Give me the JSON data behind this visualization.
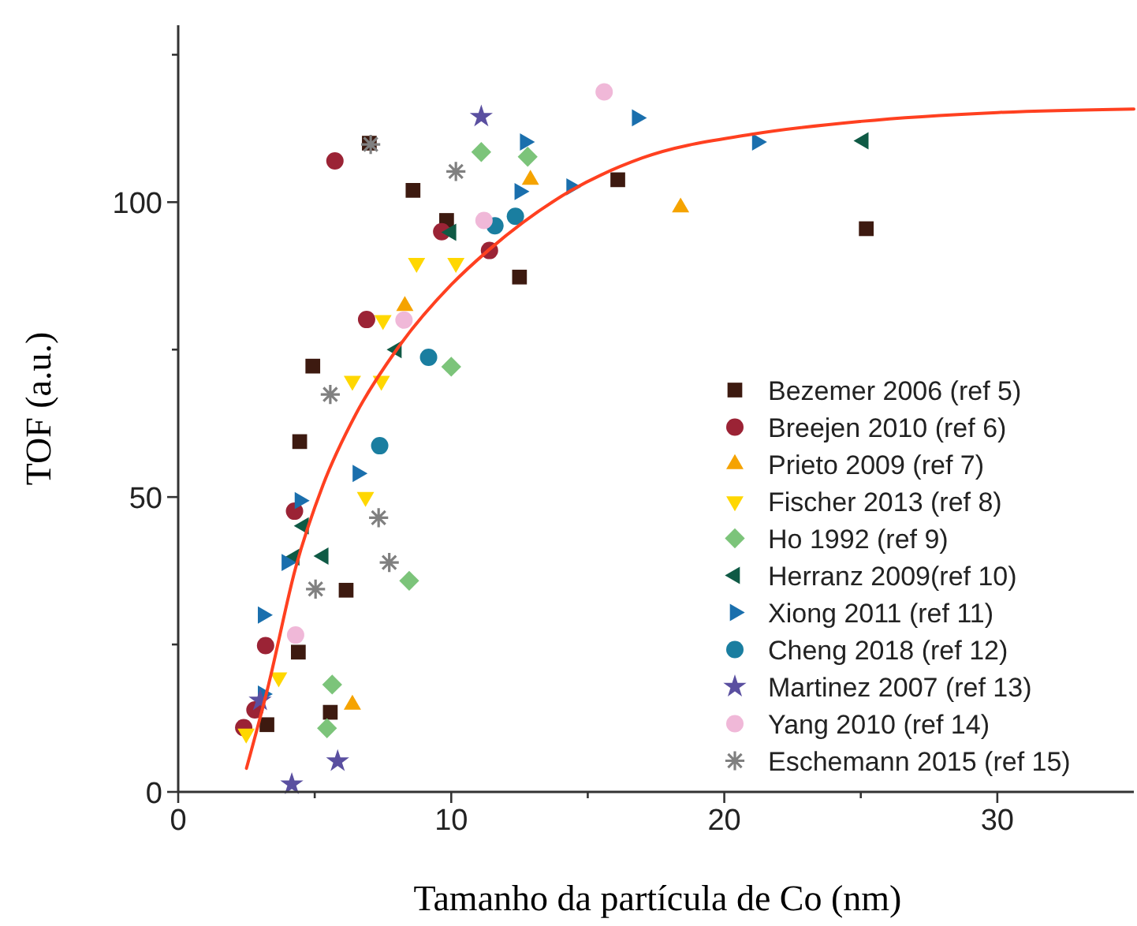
{
  "chart_data": {
    "type": "scatter",
    "xlabel": "Tamanho da partícula de Co (nm)",
    "ylabel": "TOF (a.u.)",
    "xlim": [
      0,
      35
    ],
    "ylim": [
      0,
      130
    ],
    "xticks": [
      0,
      {
        "value": 5,
        "label": null
      },
      10,
      {
        "value": 15,
        "label": null
      },
      20,
      {
        "value": 25,
        "label": null
      },
      30
    ],
    "yticks": [
      0,
      {
        "value": 25,
        "label": null
      },
      50,
      {
        "value": 75,
        "label": null
      },
      100,
      {
        "value": 125,
        "label": null
      }
    ],
    "grid": false,
    "legend": "bottom right",
    "series": [
      {
        "name": "Bezemer 2006 (ref 5)",
        "color": "#3d1a10",
        "marker": "square",
        "x": [
          3.25,
          4.4,
          4.45,
          4.93,
          5.57,
          6.15,
          7.0,
          8.6,
          9.83,
          12.5,
          16.1,
          25.2
        ],
        "values": [
          11.4,
          23.7,
          59.4,
          72.2,
          13.5,
          34.2,
          110,
          102,
          96.9,
          87.3,
          103.8,
          95.5
        ]
      },
      {
        "name": "Breejen 2010 (ref 6)",
        "color": "#9b2335",
        "marker": "circle",
        "x": [
          2.4,
          2.81,
          3.2,
          4.26,
          5.74,
          6.9,
          9.65,
          11.4
        ],
        "values": [
          10.9,
          13.9,
          24.8,
          47.6,
          107,
          80.1,
          95,
          91.8
        ]
      },
      {
        "name": "Prieto 2009 (ref 7)",
        "color": "#f5a300",
        "marker": "triangle",
        "x": [
          6.38,
          8.3,
          12.9,
          18.4
        ],
        "values": [
          14.8,
          82.4,
          103.8,
          99.1
        ]
      },
      {
        "name": "Fischer 2013 (ref 8)",
        "color": "#ffd700",
        "marker": "triangle-down",
        "x": [
          2.49,
          3.68,
          6.86,
          6.38,
          7.44,
          7.5,
          8.73,
          10.17
        ],
        "values": [
          9.9,
          19.4,
          50,
          69.7,
          69.7,
          80,
          89.7,
          89.7
        ]
      },
      {
        "name": "Ho 1992 (ref 9)",
        "color": "#7cc47a",
        "marker": "diamond",
        "x": [
          5.45,
          5.64,
          8.46,
          10.0,
          11.1,
          12.8
        ],
        "values": [
          10.8,
          18.2,
          35.8,
          72.1,
          108.5,
          107.7
        ]
      },
      {
        "name": "Herranz 2009(ref 10)",
        "color": "#0f5a45",
        "marker": "triangle-left",
        "x": [
          4.26,
          5.32,
          4.6,
          8.0,
          10.0,
          25.1
        ],
        "values": [
          39.8,
          40,
          45.1,
          75,
          94.9,
          110.4
        ]
      },
      {
        "name": "Xiong 2011 (ref 11)",
        "color": "#1a6fad",
        "marker": "triangle-right",
        "x": [
          3.1,
          3.1,
          3.97,
          4.45,
          6.57,
          12.5,
          12.7,
          14.4,
          16.8,
          21.2
        ],
        "values": [
          16.6,
          30,
          38.9,
          49.4,
          54,
          101.8,
          110.2,
          102.6,
          114.3,
          110.2
        ]
      },
      {
        "name": "Cheng 2018 (ref 12)",
        "color": "#1a7ea0",
        "x": [
          7.38,
          9.17,
          11.6,
          12.35
        ],
        "values": [
          58.7,
          73.7,
          96,
          97.6
        ]
      },
      {
        "name": "Martinez 2007 (ref 13)",
        "color": "#5a4fa0",
        "marker": "star",
        "x": [
          3.0,
          4.16,
          5.84,
          11.1
        ],
        "values": [
          15.5,
          1.3,
          5.2,
          114.5
        ]
      },
      {
        "name": "Yang 2010 (ref 14)",
        "color": "#f0b8d8",
        "x": [
          4.3,
          8.27,
          11.2,
          15.6
        ],
        "values": [
          26.6,
          80,
          96.9,
          118.7
        ]
      },
      {
        "name": "Eschemann 2015 (ref 15)",
        "color": "#808080",
        "marker": "cross",
        "x": [
          5.03,
          5.57,
          7.05,
          7.34,
          7.73,
          10.17
        ],
        "values": [
          34.4,
          67.4,
          109.8,
          46.5,
          38.9,
          105.2
        ]
      },
      {
        "type": "line",
        "color": "#ff4020",
        "marker": "none",
        "line_style": "solid",
        "x": [
          2.5,
          3.3,
          4.3,
          5.3,
          6.5,
          8,
          10,
          11.4,
          14.4,
          17,
          21,
          25,
          30,
          35
        ],
        "values": [
          4,
          18,
          38,
          52,
          64,
          75,
          86,
          92,
          102,
          107.5,
          111.5,
          113.7,
          115.2,
          115.8
        ]
      }
    ]
  }
}
